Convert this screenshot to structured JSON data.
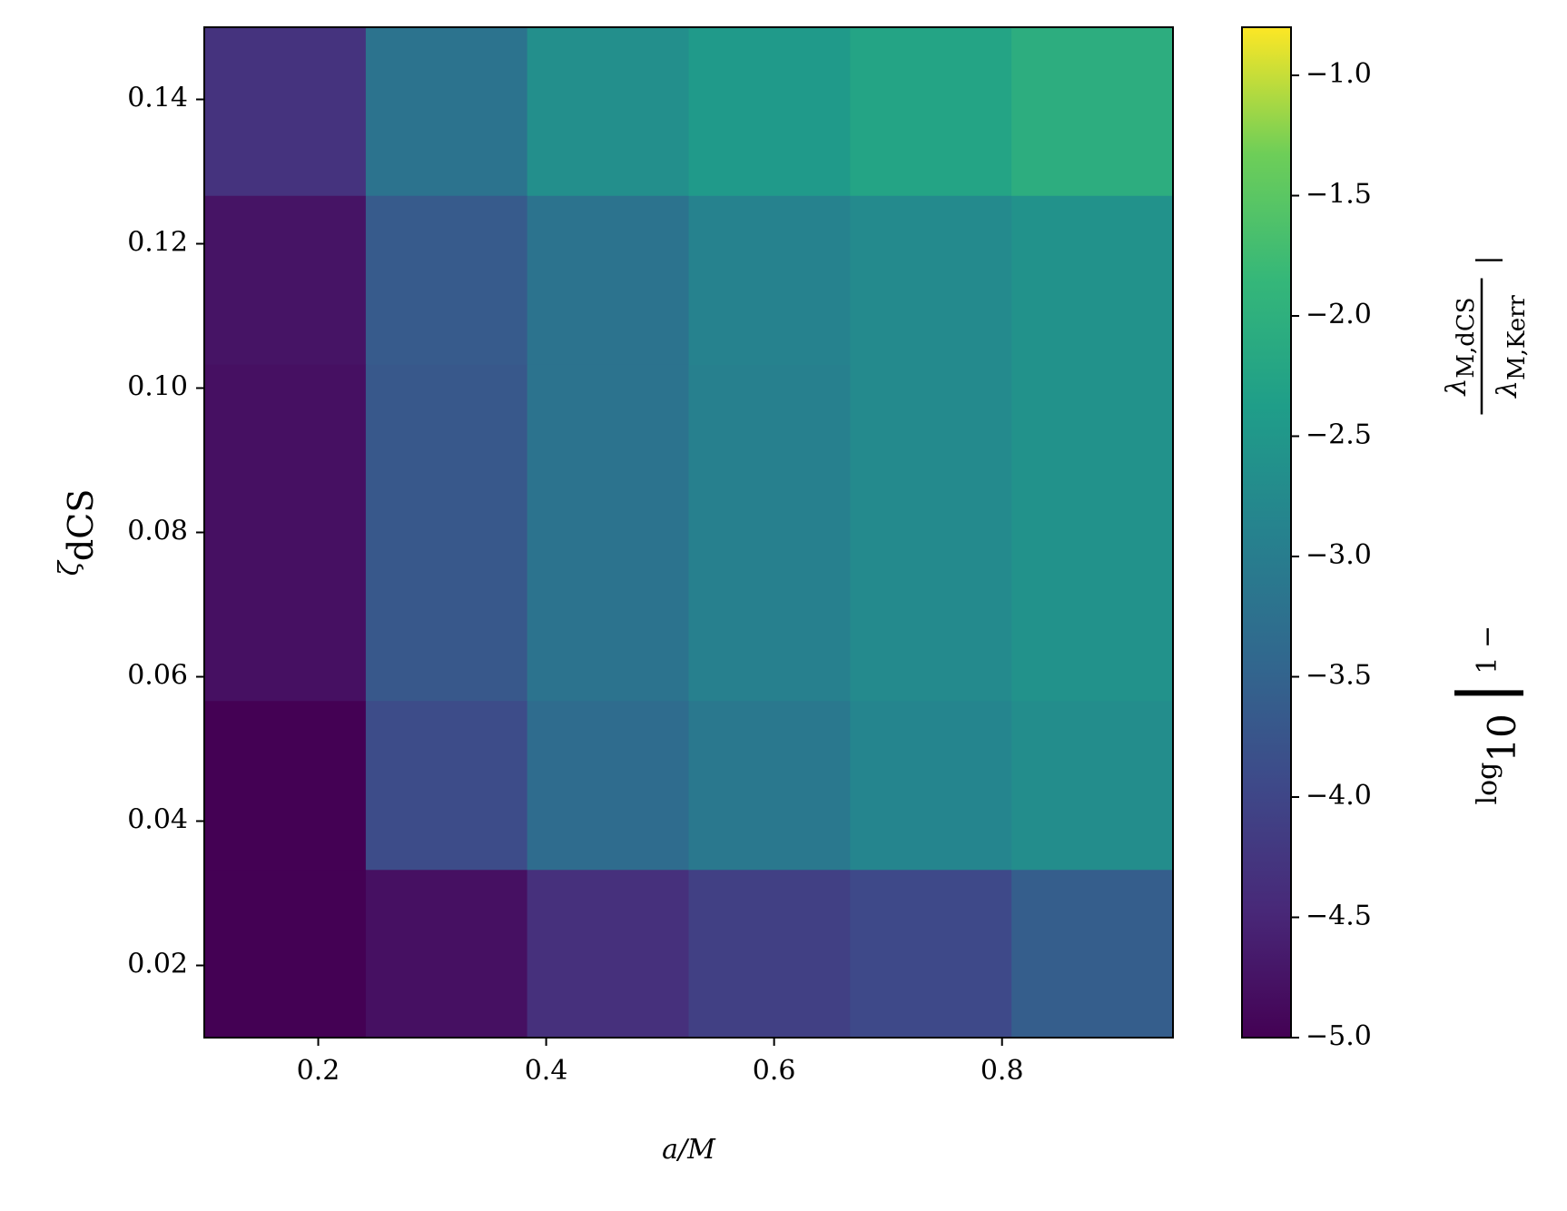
{
  "chart_data": {
    "type": "heatmap",
    "xlabel": "a/M",
    "ylabel": {
      "symbol": "ζ",
      "subscript": "dCS"
    },
    "colorbar_label": {
      "log": "log",
      "base": "10",
      "one_minus": "1 −",
      "num_symbol": "λ",
      "num_sub": "M,dCS",
      "den_symbol": "λ",
      "den_sub": "M,Kerr"
    },
    "x_edges": [
      0.1,
      0.2417,
      0.3833,
      0.525,
      0.6667,
      0.8083,
      0.95
    ],
    "y_edges": [
      0.01,
      0.0333,
      0.0567,
      0.08,
      0.1033,
      0.1267,
      0.15
    ],
    "z": [
      [
        -5.0,
        -4.8,
        -4.35,
        -4.1,
        -3.95,
        -3.6
      ],
      [
        -5.0,
        -3.9,
        -3.35,
        -3.1,
        -2.85,
        -2.7
      ],
      [
        -4.8,
        -3.7,
        -3.2,
        -2.95,
        -2.75,
        -2.6
      ],
      [
        -4.8,
        -3.7,
        -3.2,
        -2.95,
        -2.75,
        -2.6
      ],
      [
        -4.75,
        -3.65,
        -3.2,
        -2.9,
        -2.75,
        -2.6
      ],
      [
        -4.3,
        -3.2,
        -2.65,
        -2.45,
        -2.25,
        -2.05
      ]
    ],
    "cmap": "viridis",
    "clim": [
      -5.0,
      -0.8
    ],
    "xlim": [
      0.1,
      0.95
    ],
    "ylim": [
      0.01,
      0.15
    ],
    "xticks": [
      0.2,
      0.4,
      0.6,
      0.8
    ],
    "yticks": [
      0.02,
      0.04,
      0.06,
      0.08,
      {
        "value": 0.1,
        "label": "0.10"
      },
      0.12,
      0.14
    ],
    "cticks": [
      {
        "value": -5.0,
        "label": "−5.0"
      },
      {
        "value": -4.5,
        "label": "−4.5"
      },
      {
        "value": -4.0,
        "label": "−4.0"
      },
      {
        "value": -3.5,
        "label": "−3.5"
      },
      {
        "value": -3.0,
        "label": "−3.0"
      },
      {
        "value": -2.5,
        "label": "−2.5"
      },
      {
        "value": -2.0,
        "label": "−2.0"
      },
      {
        "value": -1.5,
        "label": "−1.5"
      },
      {
        "value": -1.0,
        "label": "−1.0"
      }
    ]
  }
}
